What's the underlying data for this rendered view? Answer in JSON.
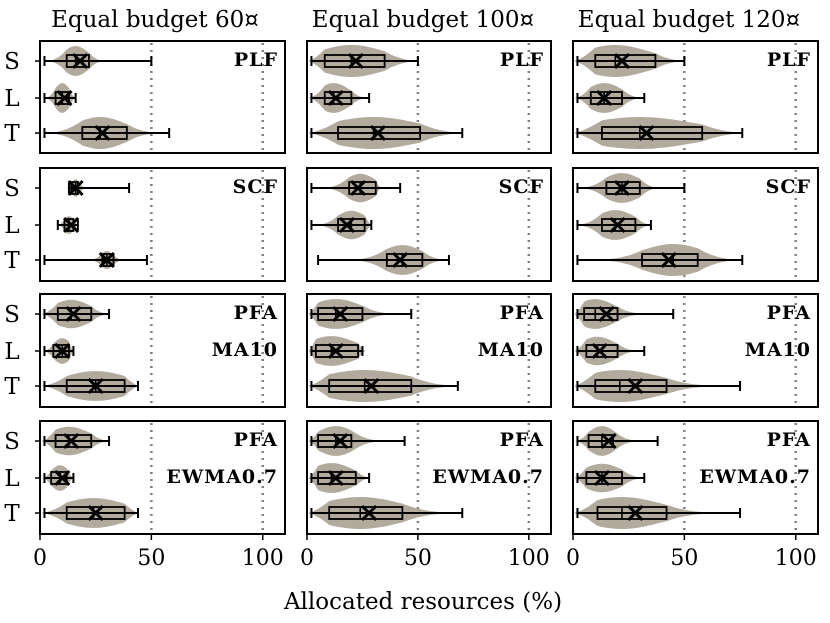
{
  "chart_data": {
    "type": "violin",
    "xlabel": "Allocated resources (%)",
    "xlim": [
      0,
      110
    ],
    "xticks": [
      0,
      50,
      100
    ],
    "reference_lines": [
      50,
      100
    ],
    "row_labels": [
      "S",
      "L",
      "T"
    ],
    "columns": [
      {
        "title": "Equal budget 60¤"
      },
      {
        "title": "Equal budget 100¤"
      },
      {
        "title": "Equal budget 120¤"
      }
    ],
    "panel_rows": [
      {
        "tags": [
          "PLF"
        ]
      },
      {
        "tags": [
          "SCF"
        ]
      },
      {
        "tags": [
          "PFA",
          "MA10"
        ]
      },
      {
        "tags": [
          "PFA",
          "EWMA0.7"
        ]
      }
    ],
    "panels": [
      [
        {
          "S": {
            "min": 2,
            "q1": 12,
            "median": 16,
            "q3": 22,
            "max": 50,
            "mean": 18,
            "kde_max": 30,
            "width": 0.42
          },
          "L": {
            "min": 2,
            "q1": 7,
            "median": 10,
            "q3": 13,
            "max": 16,
            "mean": 11,
            "kde_max": 16,
            "width": 0.42
          },
          "T": {
            "min": 2,
            "q1": 19,
            "median": 27,
            "q3": 39,
            "max": 58,
            "mean": 28,
            "kde_max": 58,
            "width": 0.45
          }
        },
        {
          "S": {
            "min": 2,
            "q1": 8,
            "median": 20,
            "q3": 35,
            "max": 50,
            "mean": 22,
            "kde_max": 50,
            "width": 0.45
          },
          "L": {
            "min": 2,
            "q1": 8,
            "median": 12,
            "q3": 20,
            "max": 28,
            "mean": 13,
            "kde_max": 28,
            "width": 0.42
          },
          "T": {
            "min": 2,
            "q1": 14,
            "median": 30,
            "q3": 51,
            "max": 70,
            "mean": 32,
            "kde_max": 70,
            "width": 0.45
          }
        },
        {
          "S": {
            "min": 2,
            "q1": 10,
            "median": 19,
            "q3": 37,
            "max": 50,
            "mean": 22,
            "kde_max": 50,
            "width": 0.45
          },
          "L": {
            "min": 2,
            "q1": 8,
            "median": 14,
            "q3": 22,
            "max": 32,
            "mean": 14,
            "kde_max": 32,
            "width": 0.42
          },
          "T": {
            "min": 2,
            "q1": 13,
            "median": 30,
            "q3": 58,
            "max": 76,
            "mean": 33,
            "kde_max": 76,
            "width": 0.45
          }
        }
      ],
      [
        {
          "S": {
            "min": 13,
            "q1": 14,
            "median": 16,
            "q3": 17,
            "max": 40,
            "mean": 16,
            "kde_max": 40,
            "width": 0.25
          },
          "L": {
            "min": 8,
            "q1": 11,
            "median": 13,
            "q3": 15,
            "max": 17,
            "mean": 14,
            "kde_max": 17,
            "width": 0.25
          },
          "T": {
            "min": 2,
            "q1": 28,
            "median": 30,
            "q3": 33,
            "max": 48,
            "mean": 30,
            "kde_max": 50,
            "width": 0.25
          }
        },
        {
          "S": {
            "min": 2,
            "q1": 19,
            "median": 24,
            "q3": 31,
            "max": 42,
            "mean": 23,
            "kde_max": 33,
            "width": 0.4
          },
          "L": {
            "min": 2,
            "q1": 14,
            "median": 20,
            "q3": 26,
            "max": 29,
            "mean": 18,
            "kde_max": 29,
            "width": 0.4
          },
          "T": {
            "min": 5,
            "q1": 36,
            "median": 43,
            "q3": 52,
            "max": 64,
            "mean": 42,
            "kde_max": 64,
            "width": 0.42
          }
        },
        {
          "S": {
            "min": 2,
            "q1": 15,
            "median": 22,
            "q3": 30,
            "max": 50,
            "mean": 22,
            "kde_max": 38,
            "width": 0.42
          },
          "L": {
            "min": 2,
            "q1": 13,
            "median": 19,
            "q3": 28,
            "max": 35,
            "mean": 20,
            "kde_max": 35,
            "width": 0.42
          },
          "T": {
            "min": 2,
            "q1": 31,
            "median": 45,
            "q3": 56,
            "max": 76,
            "mean": 43,
            "kde_max": 76,
            "width": 0.45
          }
        }
      ],
      [
        {
          "S": {
            "min": 2,
            "q1": 8,
            "median": 14,
            "q3": 23,
            "max": 31,
            "mean": 15,
            "kde_max": 31,
            "width": 0.4
          },
          "L": {
            "min": 2,
            "q1": 6,
            "median": 10,
            "q3": 13,
            "max": 15,
            "mean": 10,
            "kde_max": 15,
            "width": 0.36
          },
          "T": {
            "min": 2,
            "q1": 12,
            "median": 25,
            "q3": 38,
            "max": 44,
            "mean": 25,
            "kde_max": 44,
            "width": 0.42
          }
        },
        {
          "S": {
            "min": 2,
            "q1": 5,
            "median": 13,
            "q3": 25,
            "max": 47,
            "mean": 15,
            "kde_max": 45,
            "width": 0.42
          },
          "L": {
            "min": 2,
            "q1": 4,
            "median": 11,
            "q3": 23,
            "max": 25,
            "mean": 13,
            "kde_max": 26,
            "width": 0.42
          },
          "T": {
            "min": 2,
            "q1": 10,
            "median": 26,
            "q3": 47,
            "max": 68,
            "mean": 29,
            "kde_max": 68,
            "width": 0.45
          }
        },
        {
          "S": {
            "min": 2,
            "q1": 5,
            "median": 10,
            "q3": 20,
            "max": 45,
            "mean": 15,
            "kde_max": 47,
            "width": 0.42
          },
          "L": {
            "min": 2,
            "q1": 6,
            "median": 11,
            "q3": 20,
            "max": 32,
            "mean": 12,
            "kde_max": 32,
            "width": 0.4
          },
          "T": {
            "min": 2,
            "q1": 10,
            "median": 21,
            "q3": 42,
            "max": 75,
            "mean": 28,
            "kde_max": 75,
            "width": 0.45
          }
        }
      ],
      [
        {
          "S": {
            "min": 2,
            "q1": 7,
            "median": 13,
            "q3": 23,
            "max": 31,
            "mean": 14,
            "kde_max": 31,
            "width": 0.4
          },
          "L": {
            "min": 2,
            "q1": 5,
            "median": 9,
            "q3": 12,
            "max": 15,
            "mean": 10,
            "kde_max": 15,
            "width": 0.36
          },
          "T": {
            "min": 2,
            "q1": 12,
            "median": 24,
            "q3": 38,
            "max": 44,
            "mean": 25,
            "kde_max": 44,
            "width": 0.42
          }
        },
        {
          "S": {
            "min": 2,
            "q1": 5,
            "median": 13,
            "q3": 20,
            "max": 44,
            "mean": 15,
            "kde_max": 44,
            "width": 0.42
          },
          "L": {
            "min": 2,
            "q1": 5,
            "median": 11,
            "q3": 22,
            "max": 28,
            "mean": 13,
            "kde_max": 28,
            "width": 0.42
          },
          "T": {
            "min": 2,
            "q1": 10,
            "median": 24,
            "q3": 43,
            "max": 70,
            "mean": 28,
            "kde_max": 70,
            "width": 0.45
          }
        },
        {
          "S": {
            "min": 2,
            "q1": 7,
            "median": 13,
            "q3": 18,
            "max": 38,
            "mean": 16,
            "kde_max": 46,
            "width": 0.42
          },
          "L": {
            "min": 2,
            "q1": 6,
            "median": 13,
            "q3": 22,
            "max": 32,
            "mean": 13,
            "kde_max": 32,
            "width": 0.4
          },
          "T": {
            "min": 2,
            "q1": 11,
            "median": 22,
            "q3": 42,
            "max": 75,
            "mean": 28,
            "kde_max": 75,
            "width": 0.45
          }
        }
      ]
    ]
  }
}
